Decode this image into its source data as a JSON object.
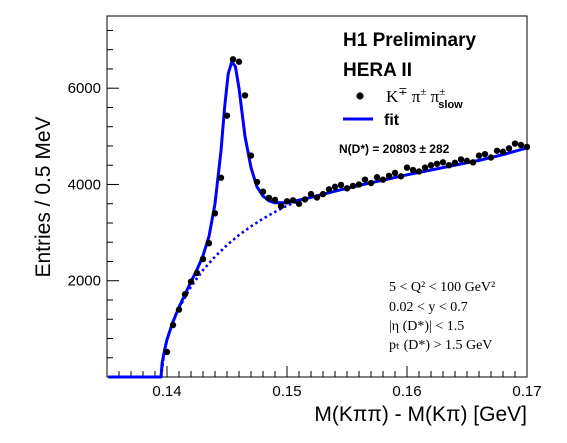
{
  "chart_data": {
    "type": "scatter",
    "title": "H1 Preliminary",
    "subtitle": "HERA II",
    "xlabel": "M(Kππ) - M(Kπ) [GeV]",
    "ylabel": "Entries / 0.5 MeV",
    "xlim": [
      0.135,
      0.17
    ],
    "ylim": [
      0,
      7500
    ],
    "x_ticks": [
      0.14,
      0.15,
      0.16,
      0.17
    ],
    "x_tick_labels": [
      "0.14",
      "0.15",
      "0.16",
      "0.17"
    ],
    "y_ticks": [
      2000,
      4000,
      6000
    ],
    "y_tick_labels": [
      "2000",
      "4000",
      "6000"
    ],
    "grid": false,
    "legend_position": "top-right",
    "legend": [
      {
        "label": "K∓ π± π±slow",
        "marker": "filled-circle",
        "color": "#000000"
      },
      {
        "label": "fit",
        "marker": "line",
        "color": "#0000ff"
      }
    ],
    "annotation": "N(D*) =  20803 ± 282",
    "cuts": [
      "5 < Q² < 100 GeV²",
      "0.02 < y < 0.7",
      "|η (D*)| < 1.5",
      "pₜ (D*) > 1.5 GeV"
    ],
    "colors": {
      "fit": "#0000ff",
      "data": "#000000"
    },
    "series": [
      {
        "name": "K∓ π± π±slow",
        "type": "scatter",
        "x": [
          0.14,
          0.1405,
          0.141,
          0.1415,
          0.142,
          0.1425,
          0.143,
          0.1435,
          0.144,
          0.1445,
          0.145,
          0.1455,
          0.146,
          0.1465,
          0.147,
          0.1475,
          0.148,
          0.1485,
          0.149,
          0.1495,
          0.15,
          0.1505,
          0.151,
          0.1515,
          0.152,
          0.1525,
          0.153,
          0.1535,
          0.154,
          0.1545,
          0.155,
          0.1555,
          0.156,
          0.1565,
          0.157,
          0.1575,
          0.158,
          0.1585,
          0.159,
          0.1595,
          0.16,
          0.1605,
          0.161,
          0.1615,
          0.162,
          0.1625,
          0.163,
          0.1635,
          0.164,
          0.1645,
          0.165,
          0.1655,
          0.166,
          0.1665,
          0.167,
          0.1675,
          0.168,
          0.1685,
          0.169,
          0.1695,
          0.17
        ],
        "y": [
          520,
          1080,
          1400,
          1720,
          1980,
          2160,
          2450,
          2780,
          3400,
          4140,
          5430,
          6600,
          6550,
          5850,
          4600,
          4050,
          3850,
          3720,
          3680,
          3550,
          3650,
          3670,
          3600,
          3690,
          3800,
          3730,
          3800,
          3900,
          3950,
          3990,
          3920,
          3970,
          4000,
          4100,
          4030,
          4150,
          4100,
          4180,
          4240,
          4170,
          4350,
          4300,
          4270,
          4350,
          4400,
          4430,
          4460,
          4400,
          4450,
          4520,
          4490,
          4460,
          4600,
          4630,
          4560,
          4700,
          4680,
          4750,
          4850,
          4820,
          4780
        ]
      },
      {
        "name": "fit",
        "type": "line",
        "x": [
          0.1351,
          0.1395,
          0.1396,
          0.1398,
          0.14,
          0.1405,
          0.141,
          0.1415,
          0.142,
          0.1425,
          0.143,
          0.1435,
          0.144,
          0.1445,
          0.1448,
          0.1451,
          0.1454,
          0.1457,
          0.146,
          0.1465,
          0.147,
          0.1475,
          0.148,
          0.1485,
          0.149,
          0.15,
          0.152,
          0.154,
          0.156,
          0.158,
          0.16,
          0.162,
          0.164,
          0.166,
          0.168,
          0.17
        ],
        "y": [
          0,
          0,
          300,
          560,
          780,
          1150,
          1450,
          1720,
          1980,
          2230,
          2520,
          2920,
          3600,
          4700,
          5600,
          6300,
          6550,
          6450,
          6000,
          5000,
          4350,
          3950,
          3760,
          3660,
          3620,
          3620,
          3730,
          3860,
          3980,
          4090,
          4200,
          4300,
          4400,
          4500,
          4620,
          4760
        ]
      },
      {
        "name": "background",
        "type": "line",
        "style": "dotted",
        "x": [
          0.1395,
          0.1398,
          0.14,
          0.1405,
          0.141,
          0.142,
          0.143,
          0.144,
          0.145,
          0.146,
          0.147,
          0.148,
          0.149,
          0.15,
          0.151
        ],
        "y": [
          0,
          560,
          780,
          1150,
          1430,
          1880,
          2220,
          2500,
          2740,
          2950,
          3130,
          3290,
          3430,
          3560,
          3660
        ]
      }
    ]
  }
}
